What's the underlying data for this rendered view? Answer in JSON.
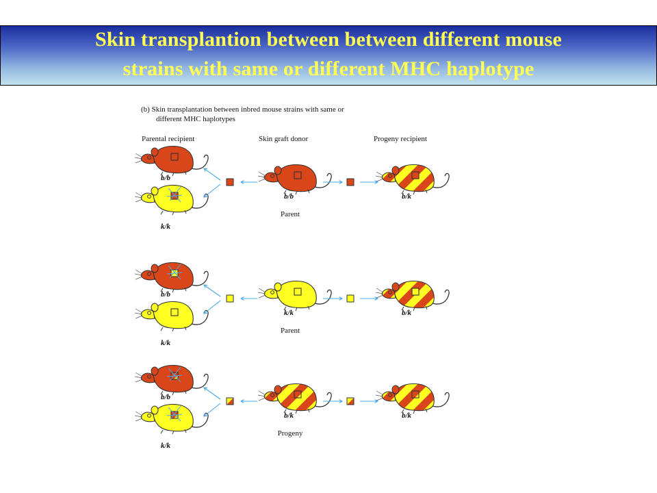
{
  "slide": {
    "title_line1": "Skin transplantion between between different mouse",
    "title_line2": "strains with same or different MHC haplotype"
  },
  "figure": {
    "caption_line1": "(b) Skin transplantation between inbred mouse strains with same or",
    "caption_line2": "different MHC haplotypes",
    "headers": {
      "parental_recipient": "Parental recipient",
      "skin_graft_donor": "Skin graft donor",
      "progeny_recipient": "Progeny recipient"
    },
    "rows": [
      {
        "top_recipient": "b/b",
        "bottom_recipient": "k/k",
        "donor_genotype": "b/b",
        "donor_label": "Parent",
        "progeny_genotype": "b/k"
      },
      {
        "top_recipient": "b/b",
        "bottom_recipient": "k/k",
        "donor_genotype": "k/k",
        "donor_label": "Parent",
        "progeny_genotype": "b/k"
      },
      {
        "top_recipient": "b/b",
        "bottom_recipient": "k/k",
        "donor_genotype": "b/k",
        "donor_label": "Progeny",
        "progeny_genotype": "b/k"
      }
    ],
    "colors": {
      "b_strain": "#d9461a",
      "k_strain": "#ffff22",
      "arrow": "#4aa8e8",
      "reject_mark": "#4aa8e8"
    }
  }
}
